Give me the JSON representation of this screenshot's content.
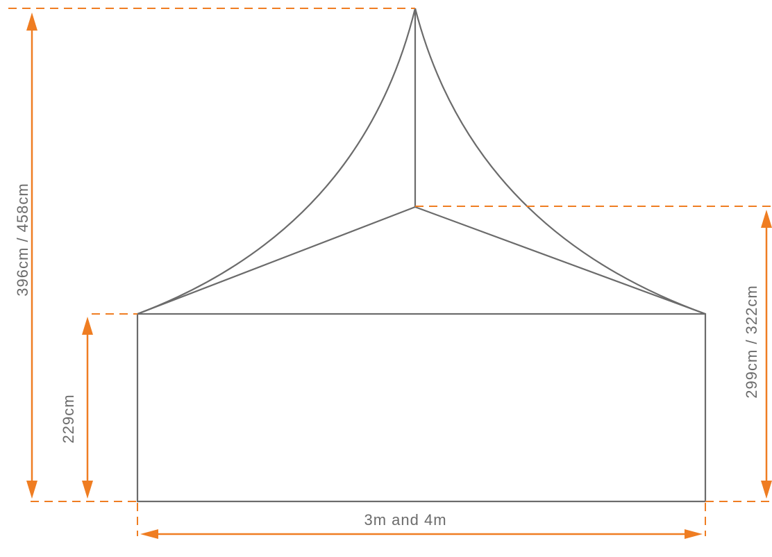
{
  "labels": {
    "overall_height": "396cm / 458cm",
    "wall_height": "229cm",
    "eave_to_apex_frame": "299cm / 322cm",
    "width": "3m and 4m"
  },
  "colors": {
    "dimension": "#ef7d22",
    "outline": "#6b6b6b"
  }
}
